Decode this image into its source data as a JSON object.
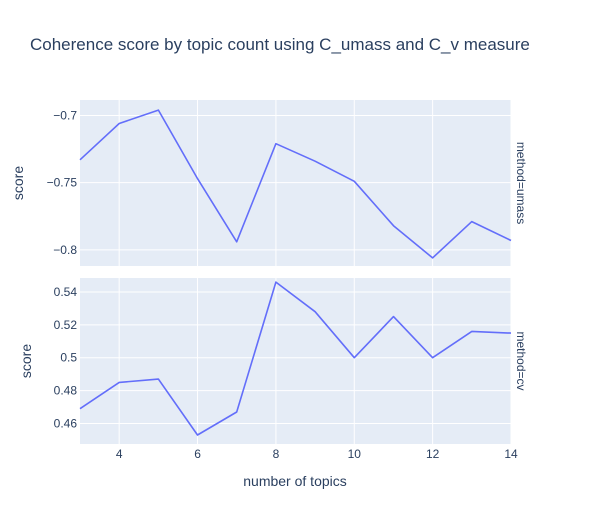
{
  "chart_data": {
    "type": "line",
    "title": "Coherence score by topic count using C_umass and C_v measure",
    "xlabel": "number of topics",
    "x": [
      3,
      4,
      5,
      6,
      7,
      8,
      9,
      10,
      11,
      12,
      13,
      14
    ],
    "xlim": [
      3,
      14
    ],
    "xticks": [
      4,
      6,
      8,
      10,
      12,
      14
    ],
    "line_color": "#636efa",
    "plot_bg": "#e5ecf6",
    "grid": true,
    "panels": [
      {
        "facet_label": "method=umass",
        "ylabel": "score",
        "ylim": [
          -0.812,
          -0.6885
        ],
        "yticks": [
          -0.7,
          -0.75,
          -0.8
        ],
        "ytick_labels": [
          "−0.7",
          "−0.75",
          "−0.8"
        ],
        "values": [
          -0.733,
          -0.706,
          -0.696,
          -0.747,
          -0.794,
          -0.721,
          -0.734,
          -0.749,
          -0.782,
          -0.806,
          -0.779,
          -0.793
        ]
      },
      {
        "facet_label": "method=cv",
        "ylabel": "score",
        "ylim": [
          0.4475,
          0.5485
        ],
        "yticks": [
          0.46,
          0.48,
          0.5,
          0.52,
          0.54
        ],
        "ytick_labels": [
          "0.46",
          "0.48",
          "0.5",
          "0.52",
          "0.54"
        ],
        "values": [
          0.469,
          0.485,
          0.487,
          0.453,
          0.467,
          0.546,
          0.528,
          0.5,
          0.525,
          0.5,
          0.516,
          0.515
        ]
      }
    ]
  }
}
